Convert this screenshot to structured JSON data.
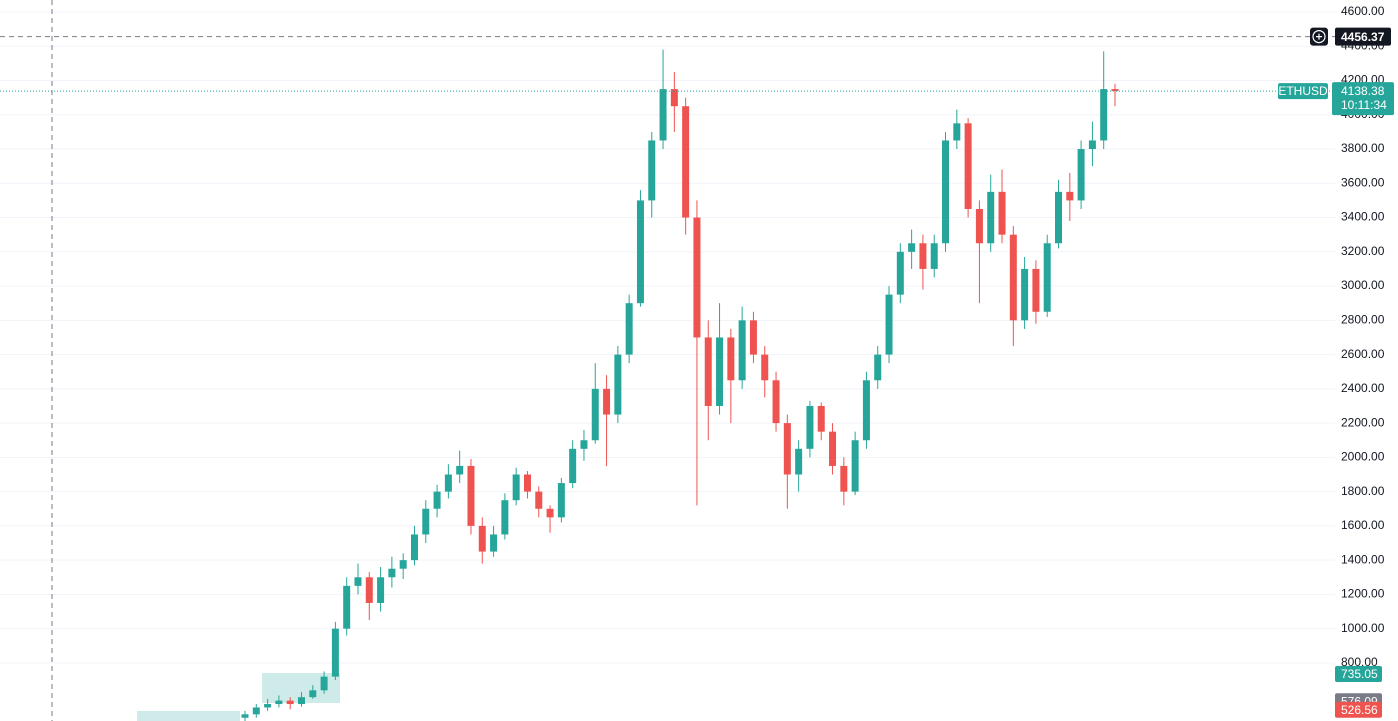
{
  "chart_data": {
    "type": "candlestick",
    "symbol": "ETHUSD",
    "last_price": 4138.38,
    "countdown": "10:11:34",
    "crosshair_price": 4456.37,
    "levels": [
      {
        "value": 735.05,
        "color": "#26a69a"
      },
      {
        "value": 576.09,
        "color": "#787b86"
      },
      {
        "value": 526.56,
        "color": "#ef5350"
      }
    ],
    "up_color": "#26a69a",
    "down_color": "#ef5350",
    "grid": true,
    "ylim": [
      461,
      4670
    ],
    "yticks": [
      {
        "value": 800,
        "label": "800.00"
      },
      {
        "value": 1000,
        "label": "1000.00"
      },
      {
        "value": 1200,
        "label": "1200.00"
      },
      {
        "value": 1400,
        "label": "1400.00"
      },
      {
        "value": 1600,
        "label": "1600.00"
      },
      {
        "value": 1800,
        "label": "1800.00"
      },
      {
        "value": 2000,
        "label": "2000.00"
      },
      {
        "value": 2200,
        "label": "2200.00"
      },
      {
        "value": 2400,
        "label": "2400.00"
      },
      {
        "value": 2600,
        "label": "2600.00"
      },
      {
        "value": 2800,
        "label": "2800.00"
      },
      {
        "value": 3000,
        "label": "3000.00"
      },
      {
        "value": 3200,
        "label": "3200.00"
      },
      {
        "value": 3400,
        "label": "3400.00"
      },
      {
        "value": 3600,
        "label": "3600.00"
      },
      {
        "value": 3800,
        "label": "3800.00"
      },
      {
        "value": 4000,
        "label": "4000.00"
      },
      {
        "value": 4200,
        "label": "4200.00"
      },
      {
        "value": 4400,
        "label": "4400.00"
      },
      {
        "value": 4600,
        "label": "4600.00"
      }
    ],
    "open": [
      480,
      500,
      540,
      560,
      580,
      560,
      600,
      640,
      720,
      1000,
      1250,
      1300,
      1150,
      1300,
      1350,
      1400,
      1550,
      1700,
      1800,
      1900,
      1950,
      1600,
      1450,
      1550,
      1750,
      1900,
      1800,
      1700,
      1650,
      1850,
      2050,
      2100,
      2400,
      2250,
      2600,
      2900,
      3500,
      3850,
      4150,
      4050,
      3400,
      2700,
      2300,
      2700,
      2450,
      2800,
      2600,
      2450,
      2200,
      1900,
      2050,
      2300,
      2150,
      1950,
      1800,
      2100,
      2450,
      2600,
      2950,
      3200,
      3250,
      3100,
      3250,
      3850,
      3950,
      3450,
      3250,
      3550,
      3300,
      2800,
      3100,
      2850,
      3250,
      3550,
      3500,
      3800,
      3850,
      4150
    ],
    "high": [
      520,
      560,
      590,
      610,
      600,
      630,
      670,
      750,
      1040,
      1300,
      1380,
      1330,
      1360,
      1420,
      1440,
      1600,
      1750,
      1840,
      1960,
      2040,
      1990,
      1650,
      1600,
      1790,
      1940,
      1920,
      1830,
      1720,
      1880,
      2100,
      2160,
      2550,
      2480,
      2650,
      2950,
      3560,
      3900,
      4380,
      4250,
      4100,
      3500,
      2800,
      2900,
      2750,
      2880,
      2850,
      2650,
      2500,
      2250,
      2100,
      2330,
      2320,
      2200,
      2000,
      2150,
      2500,
      2650,
      3000,
      3250,
      3330,
      3300,
      3300,
      3900,
      4030,
      3980,
      3500,
      3650,
      3680,
      3350,
      3170,
      3150,
      3300,
      3620,
      3660,
      3850,
      3960,
      4370,
      4180
    ],
    "low": [
      460,
      480,
      520,
      540,
      530,
      545,
      590,
      620,
      700,
      960,
      1200,
      1050,
      1100,
      1240,
      1290,
      1370,
      1500,
      1650,
      1760,
      1850,
      1550,
      1380,
      1420,
      1520,
      1720,
      1760,
      1650,
      1560,
      1620,
      1820,
      1980,
      2080,
      1950,
      2200,
      2550,
      2880,
      3400,
      3800,
      3900,
      3300,
      1720,
      2100,
      2250,
      2200,
      2400,
      2550,
      2350,
      2150,
      1700,
      1800,
      2000,
      2100,
      1900,
      1720,
      1780,
      2050,
      2400,
      2550,
      2900,
      3100,
      2980,
      3050,
      3200,
      3800,
      3400,
      2900,
      3200,
      3250,
      2650,
      2750,
      2780,
      2820,
      3220,
      3380,
      3450,
      3700,
      3800,
      4050
    ],
    "close": [
      500,
      540,
      560,
      580,
      560,
      600,
      640,
      720,
      1000,
      1250,
      1300,
      1150,
      1300,
      1350,
      1400,
      1550,
      1700,
      1800,
      1900,
      1950,
      1600,
      1450,
      1550,
      1750,
      1900,
      1800,
      1700,
      1650,
      1850,
      2050,
      2100,
      2400,
      2250,
      2600,
      2900,
      3500,
      3850,
      4150,
      4050,
      3400,
      2700,
      2300,
      2700,
      2450,
      2800,
      2600,
      2450,
      2200,
      1900,
      2050,
      2300,
      2150,
      1950,
      1800,
      2100,
      2450,
      2600,
      2950,
      3200,
      3250,
      3100,
      3250,
      3850,
      3950,
      3450,
      3250,
      3550,
      3300,
      2800,
      3100,
      2850,
      3250,
      3550,
      3500,
      3800,
      3850,
      4150,
      4138.38
    ]
  }
}
